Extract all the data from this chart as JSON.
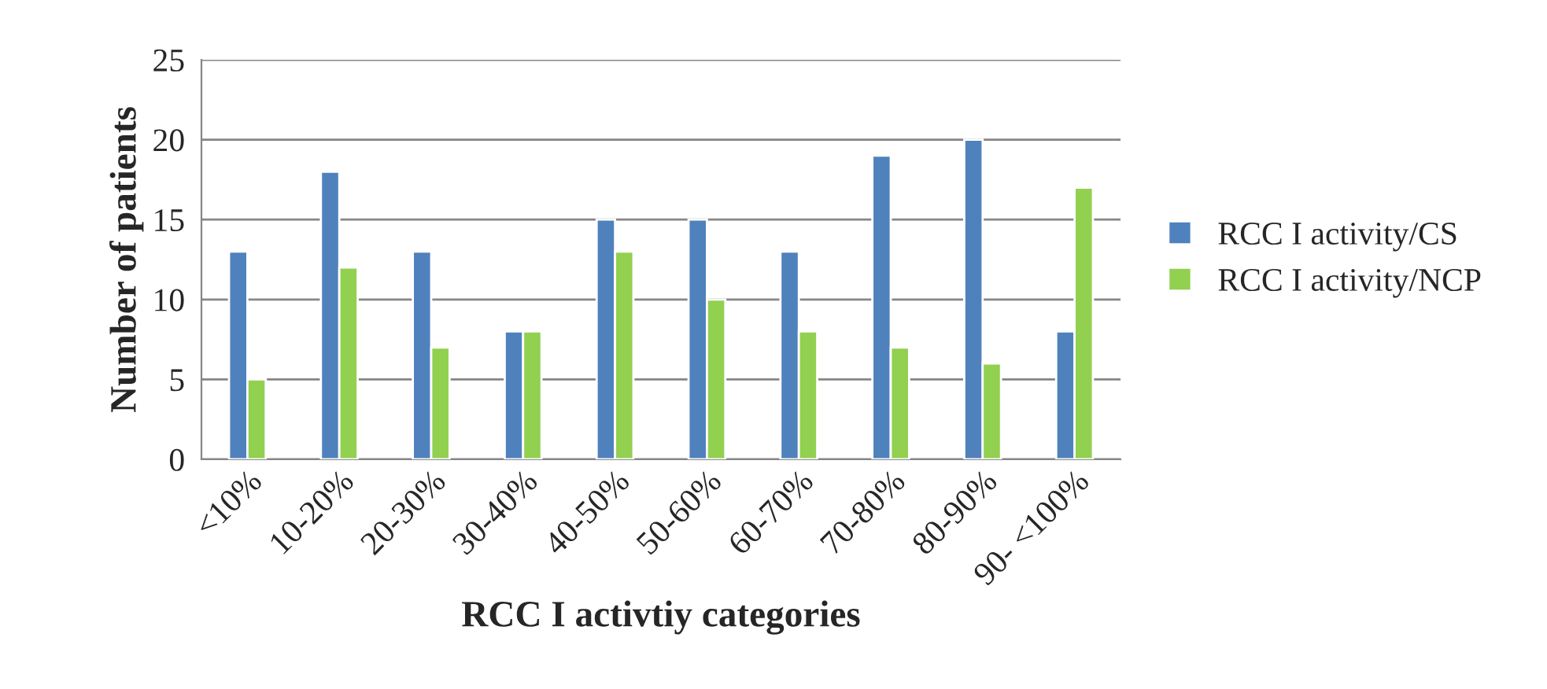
{
  "chart_data": {
    "type": "bar",
    "xlabel": "RCC I activtiy categories",
    "ylabel": "Number of patients",
    "categories": [
      "<10%",
      "10-20%",
      "20-30%",
      "30-40%",
      "40-50%",
      "50-60%",
      "60-70%",
      "70-80%",
      "80-90%",
      "90- <100%"
    ],
    "series": [
      {
        "name": "RCC I activity/CS",
        "color": "#4f81bd",
        "values": [
          13,
          18,
          13,
          8,
          15,
          15,
          13,
          19,
          20,
          8
        ]
      },
      {
        "name": "RCC I activity/NCP",
        "color": "#92d050",
        "values": [
          5,
          12,
          7,
          8,
          13,
          10,
          8,
          7,
          6,
          17
        ]
      }
    ],
    "ylim": [
      0,
      25
    ],
    "yticks": [
      0,
      5,
      10,
      15,
      20,
      25
    ],
    "grid": "y",
    "legend": "right"
  }
}
